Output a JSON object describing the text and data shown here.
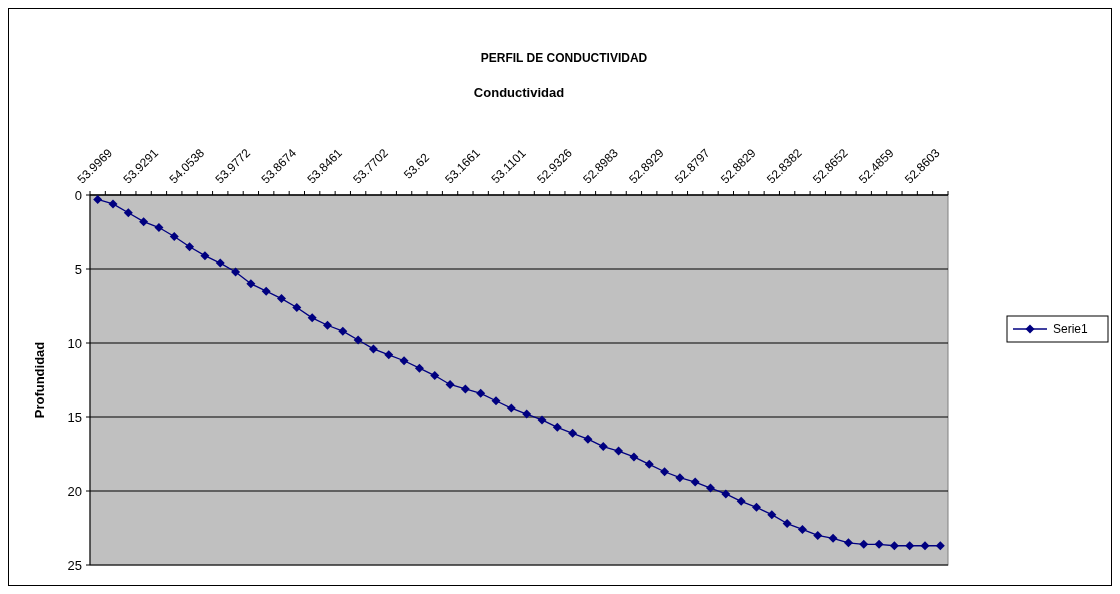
{
  "chart_data": {
    "type": "line",
    "title": "PERFIL DE CONDUCTIVIDAD",
    "xlabel": "Conductividad",
    "ylabel": "Profundidad",
    "categories": [
      "53.9969",
      null,
      null,
      "53.9291",
      null,
      null,
      "54.0538",
      null,
      null,
      "53.9772",
      null,
      null,
      "53.8674",
      null,
      null,
      "53.8461",
      null,
      null,
      "53.7702",
      null,
      null,
      "53.62",
      null,
      null,
      "53.1661",
      null,
      null,
      "53.1101",
      null,
      null,
      "52.9326",
      null,
      null,
      "52.8983",
      null,
      null,
      "52.8929",
      null,
      null,
      "52.8797",
      null,
      null,
      "52.8829",
      null,
      null,
      "52.8382",
      null,
      null,
      "52.8652",
      null,
      null,
      "52.4859",
      null,
      null,
      "52.8603",
      null
    ],
    "series": [
      {
        "name": "Serie1",
        "color": "#000080",
        "values": [
          0.3,
          0.6,
          1.2,
          1.8,
          2.2,
          2.8,
          3.5,
          4.1,
          4.6,
          5.2,
          6.0,
          6.5,
          7.0,
          7.6,
          8.3,
          8.8,
          9.2,
          9.8,
          10.4,
          10.8,
          11.2,
          11.7,
          12.2,
          12.8,
          13.1,
          13.4,
          13.9,
          14.4,
          14.8,
          15.2,
          15.7,
          16.1,
          16.5,
          17.0,
          17.3,
          17.7,
          18.2,
          18.7,
          19.1,
          19.4,
          19.8,
          20.2,
          20.7,
          21.1,
          21.6,
          22.2,
          22.6,
          23.0,
          23.2,
          23.5,
          23.6,
          23.6,
          23.7,
          23.7,
          23.7,
          23.7
        ]
      }
    ],
    "ylim": [
      25,
      0
    ],
    "yticks": [
      0,
      5,
      10,
      15,
      20,
      25
    ],
    "grid": "y",
    "legend": "right",
    "marker": "diamond",
    "line_style": "solid"
  }
}
